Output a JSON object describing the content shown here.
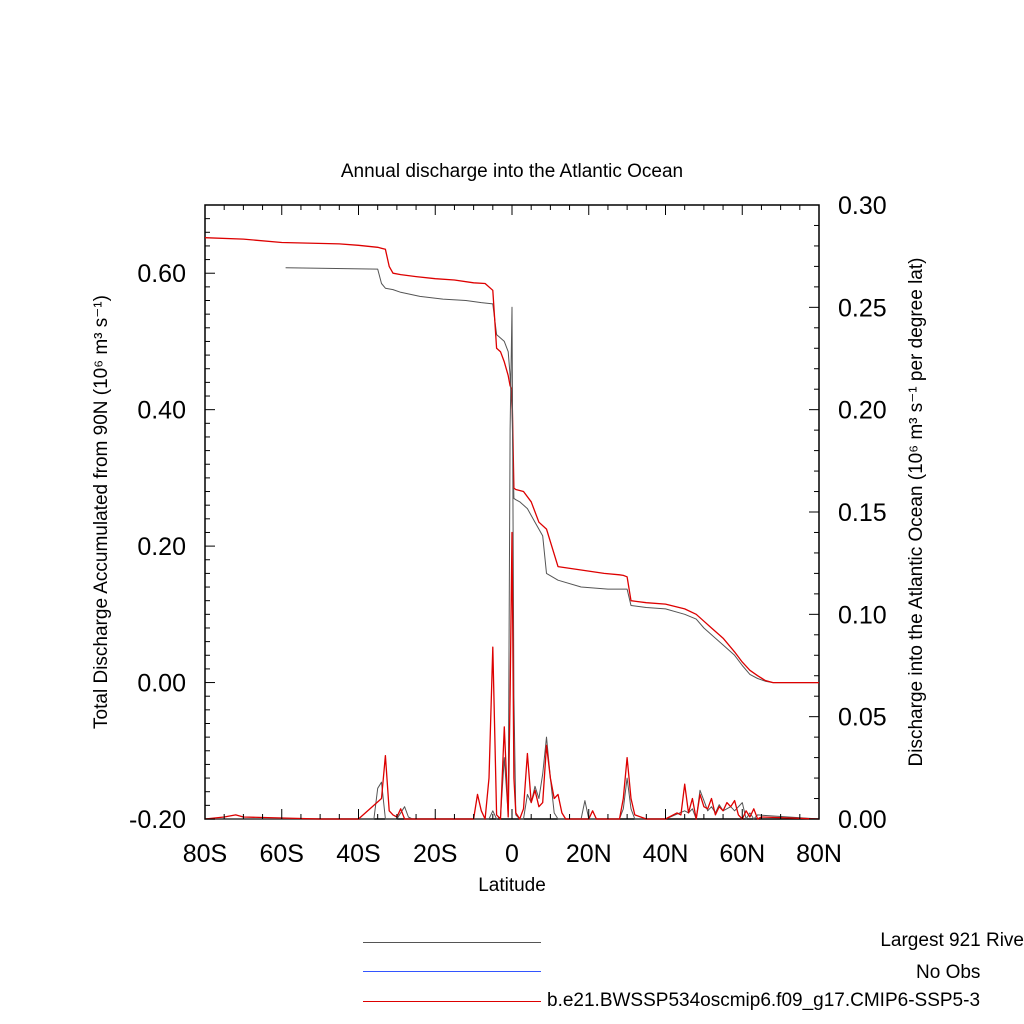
{
  "chart_data": {
    "type": "line",
    "title": "Annual discharge into the Atlantic Ocean",
    "xlabel": "Latitude",
    "ylabel_left": "Total Discharge Accumulated from 90N (10⁶ m³ s⁻¹)",
    "ylabel_right": "Discharge into the Atlantic Ocean (10⁶ m³ s⁻¹ per degree lat)",
    "xlim": [
      -80,
      80
    ],
    "ylim_left": [
      -0.2,
      0.7
    ],
    "ylim_right": [
      0.0,
      0.3
    ],
    "x_ticks": [
      {
        "value": -80,
        "label": "80S"
      },
      {
        "value": -60,
        "label": "60S"
      },
      {
        "value": -40,
        "label": "40S"
      },
      {
        "value": -20,
        "label": "20S"
      },
      {
        "value": 0,
        "label": "0"
      },
      {
        "value": 20,
        "label": "20N"
      },
      {
        "value": 40,
        "label": "40N"
      },
      {
        "value": 60,
        "label": "60N"
      },
      {
        "value": 80,
        "label": "80N"
      }
    ],
    "y_left_ticks": [
      {
        "value": -0.2,
        "label": "-0.20"
      },
      {
        "value": 0.0,
        "label": "0.00"
      },
      {
        "value": 0.2,
        "label": "0.20"
      },
      {
        "value": 0.4,
        "label": "0.40"
      },
      {
        "value": 0.6,
        "label": "0.60"
      }
    ],
    "y_right_ticks": [
      {
        "value": 0.0,
        "label": "0.00"
      },
      {
        "value": 0.05,
        "label": "0.05"
      },
      {
        "value": 0.1,
        "label": "0.10"
      },
      {
        "value": 0.15,
        "label": "0.15"
      },
      {
        "value": 0.2,
        "label": "0.20"
      },
      {
        "value": 0.25,
        "label": "0.25"
      },
      {
        "value": 0.3,
        "label": "0.30"
      }
    ],
    "series": [
      {
        "name": "Largest 921 Rive",
        "color": "#555555",
        "axis": "left",
        "x": [
          -59,
          -48,
          -35,
          -34,
          -33,
          -31,
          -29,
          -24,
          -18,
          -12,
          -8,
          -5,
          -4,
          -3,
          -2,
          -1,
          -0.5,
          0,
          0.5,
          1,
          2,
          4,
          6,
          8,
          9,
          12,
          18,
          25,
          30,
          31,
          35,
          40,
          45,
          48,
          50,
          52,
          55,
          58,
          60,
          62,
          64,
          66,
          68,
          72,
          80
        ],
        "values": [
          0.608,
          0.607,
          0.606,
          0.585,
          0.578,
          0.576,
          0.572,
          0.566,
          0.562,
          0.56,
          0.557,
          0.555,
          0.51,
          0.505,
          0.5,
          0.485,
          0.45,
          0.4,
          0.27,
          0.268,
          0.265,
          0.255,
          0.235,
          0.215,
          0.16,
          0.15,
          0.14,
          0.137,
          0.137,
          0.113,
          0.11,
          0.108,
          0.1,
          0.093,
          0.08,
          0.07,
          0.055,
          0.04,
          0.025,
          0.012,
          0.006,
          0.002,
          0.0,
          0.0,
          0.0
        ]
      },
      {
        "name": "No Obs",
        "color": "#3355ff",
        "axis": "left",
        "x": [],
        "values": []
      },
      {
        "name": "b.e21.BWSSP534oscmip6.f09_g17.CMIP6-SSP5-3",
        "color": "#dd0000",
        "axis": "left",
        "x": [
          -80,
          -70,
          -60,
          -45,
          -40,
          -35,
          -33,
          -32,
          -31,
          -29,
          -25,
          -20,
          -15,
          -10,
          -7,
          -5,
          -4,
          -3,
          -2,
          -1,
          -0.5,
          0,
          0.5,
          1,
          3,
          5,
          7,
          9,
          12,
          18,
          24,
          28,
          29,
          30,
          31,
          35,
          40,
          45,
          48,
          50,
          52,
          55,
          58,
          60,
          62,
          64,
          66,
          68,
          72,
          80
        ],
        "values": [
          0.652,
          0.65,
          0.645,
          0.643,
          0.641,
          0.638,
          0.635,
          0.61,
          0.6,
          0.598,
          0.595,
          0.592,
          0.59,
          0.586,
          0.585,
          0.575,
          0.49,
          0.485,
          0.47,
          0.45,
          0.435,
          0.43,
          0.285,
          0.283,
          0.28,
          0.265,
          0.235,
          0.225,
          0.17,
          0.165,
          0.16,
          0.158,
          0.157,
          0.155,
          0.12,
          0.117,
          0.115,
          0.108,
          0.1,
          0.09,
          0.08,
          0.065,
          0.045,
          0.03,
          0.018,
          0.01,
          0.003,
          0.0,
          0.0,
          0.0
        ]
      },
      {
        "name": "Largest 921 Rive (per degree lat)",
        "color": "#555555",
        "axis": "right",
        "x": [
          -80,
          -36,
          -35,
          -34,
          -33,
          -30,
          -28,
          -27,
          -26,
          -6,
          -5,
          -4,
          -3,
          -2,
          -1,
          -0.5,
          0,
          0.5,
          1,
          2,
          3,
          4,
          5,
          6,
          7,
          8,
          9,
          10,
          11,
          12,
          13,
          18,
          19,
          20,
          28,
          29,
          30,
          31,
          32,
          40,
          45,
          46,
          47,
          48,
          49,
          50,
          51,
          52,
          53,
          54,
          55,
          57,
          58,
          60,
          61,
          62,
          63,
          64,
          80
        ],
        "values": [
          0.0,
          0.0,
          0.015,
          0.018,
          0.0,
          0.0,
          0.006,
          0.001,
          0.0,
          0.0,
          0.004,
          0.0,
          0.001,
          0.03,
          0.002,
          0.19,
          0.25,
          0.06,
          0.002,
          0.0,
          0.0,
          0.012,
          0.008,
          0.016,
          0.01,
          0.022,
          0.04,
          0.02,
          0.003,
          0.0,
          0.0,
          0.0,
          0.009,
          0.0,
          0.0,
          0.005,
          0.02,
          0.005,
          0.0,
          0.0,
          0.004,
          0.003,
          0.005,
          0.0,
          0.014,
          0.009,
          0.004,
          0.006,
          0.003,
          0.007,
          0.004,
          0.006,
          0.004,
          0.008,
          0.0,
          0.003,
          0.0,
          0.002,
          0.0
        ]
      },
      {
        "name": "b.e21.BWSSP534oscmip6.f09_g17.CMIP6-SSP5-3 (per degree lat)",
        "color": "#dd0000",
        "axis": "right",
        "x": [
          -80,
          -75,
          -72,
          -70,
          -50,
          -40,
          -34,
          -33,
          -32,
          -31,
          -30,
          -29,
          -28,
          -10,
          -9,
          -8,
          -7,
          -6,
          -5,
          -4,
          -3,
          -2,
          -1,
          -0.5,
          0,
          0.5,
          1,
          2,
          3,
          4,
          5,
          6,
          7,
          8,
          9,
          10,
          11,
          12,
          13,
          14,
          20,
          21,
          22,
          28,
          29,
          30,
          31,
          32,
          35,
          40,
          43,
          44,
          45,
          46,
          47,
          48,
          49,
          50,
          51,
          52,
          53,
          54,
          55,
          56,
          57,
          58,
          59,
          60,
          61,
          62,
          63,
          64,
          65,
          80
        ],
        "values": [
          0.0,
          0.001,
          0.002,
          0.001,
          0.0,
          0.0,
          0.01,
          0.031,
          0.004,
          0.002,
          0.001,
          0.005,
          0.0,
          0.0,
          0.012,
          0.004,
          0.0,
          0.02,
          0.084,
          0.002,
          0.0,
          0.045,
          0.001,
          0.06,
          0.14,
          0.02,
          0.003,
          0.0,
          0.005,
          0.032,
          0.008,
          0.014,
          0.006,
          0.008,
          0.036,
          0.02,
          0.01,
          0.012,
          0.003,
          0.0,
          0.0,
          0.004,
          0.0,
          0.0,
          0.01,
          0.03,
          0.01,
          0.002,
          0.0,
          0.0,
          0.003,
          0.002,
          0.017,
          0.003,
          0.01,
          0.0,
          0.012,
          0.006,
          0.005,
          0.01,
          0.002,
          0.006,
          0.004,
          0.008,
          0.006,
          0.009,
          0.002,
          0.0,
          0.004,
          0.001,
          0.005,
          0.0,
          0.001,
          0.0
        ]
      }
    ],
    "legend": [
      {
        "label": "Largest 921 Rive",
        "color": "#555555"
      },
      {
        "label": "No Obs",
        "color": "#3355ff"
      },
      {
        "label": "b.e21.BWSSP534oscmip6.f09_g17.CMIP6-SSP5-3",
        "color": "#dd0000"
      }
    ],
    "legend_position": "bottom",
    "grid": false
  }
}
